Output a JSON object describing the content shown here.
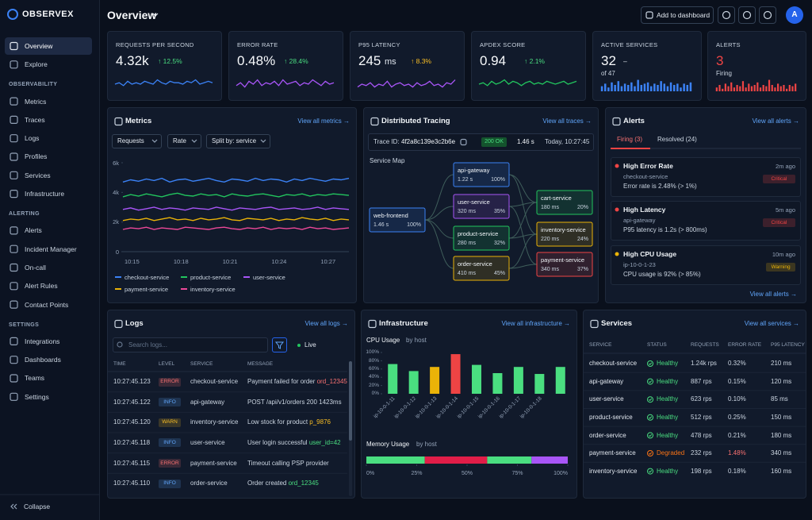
{
  "sidebar": {
    "logo": "OBSERVEX",
    "groups": [
      {
        "items": [
          "Overview",
          "Explore"
        ]
      },
      {
        "title": "OBSERVABILITY",
        "items": [
          "Metrics",
          "Traces",
          "Logs",
          "Profiles",
          "Services",
          "Infrastructure"
        ]
      },
      {
        "title": "ALERTING",
        "items": [
          "Alerts",
          "Incident Manager",
          "On-call",
          "Alert Rules",
          "Contact Points"
        ]
      },
      {
        "title": "SETTINGS",
        "items": [
          "Integrations",
          "Dashboards",
          "Teams",
          "Settings"
        ]
      }
    ],
    "collapse": "Collapse"
  },
  "header": {
    "title": "Overview",
    "add_button": "Add to dashboard",
    "avatar": "A"
  },
  "kpis": [
    {
      "label": "REQUESTS PER SECOND",
      "value": "4.32k",
      "delta": "↑ 12.5%",
      "delta_color": "#4ade80",
      "spark_type": "line",
      "spark_color": "#3b82f6",
      "spark": [
        5,
        6,
        4,
        7,
        5,
        6,
        5,
        7,
        6,
        5,
        8,
        6,
        5,
        7,
        6,
        6,
        5,
        7,
        6,
        8,
        5,
        6,
        7,
        6
      ]
    },
    {
      "label": "ERROR RATE",
      "value": "0.48%",
      "delta": "↑ 28.4%",
      "delta_color": "#4ade80",
      "spark_type": "line",
      "spark_color": "#a855f7",
      "spark": [
        4,
        6,
        3,
        7,
        5,
        8,
        4,
        6,
        5,
        7,
        4,
        8,
        5,
        6,
        7,
        4,
        6,
        5,
        8,
        6,
        4,
        7,
        5,
        6
      ]
    },
    {
      "label": "P95 LATENCY",
      "value": "245",
      "unit": "ms",
      "delta": "↑ 8.3%",
      "delta_color": "#fbbf24",
      "spark_type": "line",
      "spark_color": "#a855f7",
      "spark": [
        3,
        5,
        4,
        6,
        3,
        5,
        4,
        7,
        3,
        5,
        6,
        4,
        5,
        3,
        6,
        4,
        5,
        7,
        4,
        5,
        3,
        6,
        5,
        8
      ]
    },
    {
      "label": "APDEX SCORE",
      "value": "0.94",
      "delta": "↑ 2.1%",
      "delta_color": "#4ade80",
      "spark_type": "line",
      "spark_color": "#22c55e",
      "spark": [
        5,
        6,
        4,
        7,
        5,
        6,
        8,
        5,
        7,
        6,
        4,
        6,
        7,
        5,
        6,
        5,
        7,
        6,
        5,
        6,
        7,
        5,
        6,
        7
      ]
    },
    {
      "label": "ACTIVE SERVICES",
      "value": "32",
      "delta": "–",
      "delta_color": "#e2e8f0",
      "sub": "of 47",
      "spark_type": "bars",
      "spark_color": "#3b82f6",
      "spark": [
        4,
        6,
        3,
        7,
        5,
        8,
        4,
        6,
        5,
        7,
        4,
        9,
        5,
        6,
        7,
        4,
        6,
        5,
        8,
        6,
        4,
        7,
        5,
        6,
        3,
        6,
        5,
        7
      ]
    },
    {
      "label": "ALERTS",
      "value": "3",
      "value_color": "#ef4444",
      "sub": "Firing",
      "spark_type": "bars",
      "spark_color": "#ef4444",
      "spark": [
        3,
        5,
        2,
        6,
        4,
        7,
        3,
        5,
        4,
        8,
        3,
        6,
        4,
        5,
        7,
        3,
        5,
        4,
        9,
        5,
        3,
        6,
        4,
        5,
        2,
        5,
        4,
        6
      ]
    }
  ],
  "metrics": {
    "title": "Metrics",
    "link": "View all metrics →",
    "filters": [
      "Requests",
      "Rate",
      "Split by: service"
    ],
    "chart": {
      "type": "line",
      "ylim": [
        0,
        6000
      ],
      "yticks": [
        0,
        {
          "value": 2000,
          "label": "2k"
        },
        {
          "value": 4000,
          "label": "4k"
        },
        {
          "value": 6000,
          "label": "6k"
        }
      ],
      "xticks": [
        "10:15",
        "10:18",
        "10:21",
        "10:24",
        "10:27"
      ],
      "series": [
        {
          "name": "checkout-service",
          "color": "#3b82f6",
          "values": [
            4700,
            4850,
            4750,
            4900,
            4800,
            4950,
            4700,
            4850,
            4900,
            4750,
            4850,
            4950,
            4800,
            4700,
            4900,
            4850,
            4750,
            4950,
            4800,
            4900,
            4850,
            4700,
            4900,
            4800,
            4950,
            4850,
            4750,
            4900,
            4850,
            4950
          ]
        },
        {
          "name": "product-service",
          "color": "#22c55e",
          "values": [
            3700,
            3850,
            3750,
            3900,
            3800,
            3700,
            3850,
            3950,
            3800,
            3750,
            3900,
            3800,
            3850,
            3700,
            3900,
            3800,
            3750,
            3850,
            3900,
            3800,
            3700,
            3850,
            3800,
            3900,
            3750,
            3850,
            3800,
            3900,
            3850,
            3800
          ]
        },
        {
          "name": "user-service",
          "color": "#a855f7",
          "values": [
            2850,
            2950,
            2800,
            2900,
            3000,
            2850,
            2950,
            2900,
            2800,
            2950,
            2900,
            2850,
            3000,
            2900,
            2800,
            2950,
            2900,
            2850,
            2950,
            3000,
            2850,
            2900,
            2950,
            2850,
            2900,
            3000,
            2850,
            2950,
            2900,
            2850
          ]
        },
        {
          "name": "payment-service",
          "color": "#eab308",
          "values": [
            2100,
            2200,
            2150,
            2250,
            2100,
            2200,
            2300,
            2150,
            2200,
            2100,
            2250,
            2150,
            2200,
            2300,
            2150,
            2100,
            2250,
            2200,
            2150,
            2250,
            2100,
            2200,
            2150,
            2300,
            2200,
            2150,
            2250,
            2100,
            2200,
            2150
          ]
        },
        {
          "name": "inventory-service",
          "color": "#ec4899",
          "values": [
            1500,
            1600,
            1550,
            1650,
            1500,
            1600,
            1550,
            1500,
            1650,
            1600,
            1550,
            1500,
            1600,
            1650,
            1550,
            1500,
            1600,
            1550,
            1650,
            1500,
            1600,
            1550,
            1600,
            1500,
            1650,
            1550,
            1600,
            1500,
            1550,
            1600
          ]
        }
      ]
    }
  },
  "tracing": {
    "title": "Distributed Tracing",
    "link": "View all traces →",
    "trace_id_label": "Trace ID:",
    "trace_id": "4f2a8c139e3c2b6e",
    "status": "200 OK",
    "duration": "1.46 s",
    "time": "Today, 10:27:45",
    "map_title": "Service Map",
    "nodes": [
      {
        "name": "web-frontend",
        "duration": "1.46 s",
        "share": "100%",
        "color": "#3b82f6"
      },
      {
        "name": "api-gateway",
        "duration": "1.22 s",
        "share": "100%",
        "color": "#3b82f6"
      },
      {
        "name": "user-service",
        "duration": "320 ms",
        "share": "35%",
        "color": "#a855f7"
      },
      {
        "name": "product-service",
        "duration": "280 ms",
        "share": "32%",
        "color": "#22c55e"
      },
      {
        "name": "order-service",
        "duration": "410 ms",
        "share": "45%",
        "color": "#eab308"
      },
      {
        "name": "cart-service",
        "duration": "180 ms",
        "share": "20%",
        "color": "#22c55e"
      },
      {
        "name": "inventory-service",
        "duration": "220 ms",
        "share": "24%",
        "color": "#eab308"
      },
      {
        "name": "payment-service",
        "duration": "340 ms",
        "share": "37%",
        "color": "#ef4444"
      }
    ]
  },
  "alerts": {
    "title": "Alerts",
    "link": "View all alerts →",
    "tabs": [
      "Firing (3)",
      "Resolved (24)"
    ],
    "footer_link": "View all alerts →",
    "items": [
      {
        "title": "High Error Rate",
        "source": "checkout-service",
        "detail": "Error rate is 2.48% (> 1%)",
        "age": "2m ago",
        "severity": "Critical",
        "color": "#ef4444"
      },
      {
        "title": "High Latency",
        "source": "api-gateway",
        "detail": "P95 latency is 1.2s (> 800ms)",
        "age": "5m ago",
        "severity": "Critical",
        "color": "#ef4444"
      },
      {
        "title": "High CPU Usage",
        "source": "ip-10-0-1-23",
        "detail": "CPU usage is 92% (> 85%)",
        "age": "10m ago",
        "severity": "Warning",
        "color": "#eab308"
      }
    ]
  },
  "logs": {
    "title": "Logs",
    "link": "View all logs →",
    "search_placeholder": "Search logs...",
    "live": "Live",
    "columns": [
      "TIME",
      "LEVEL",
      "SERVICE",
      "MESSAGE"
    ],
    "rows": [
      {
        "time": "10:27:45.123",
        "level": "ERROR",
        "service": "checkout-service",
        "message": "Payment failed for order ",
        "highlight": "ord_12345"
      },
      {
        "time": "10:27:45.122",
        "level": "INFO",
        "service": "api-gateway",
        "message": "POST /api/v1/orders 200 1423ms"
      },
      {
        "time": "10:27:45.120",
        "level": "WARN",
        "service": "inventory-service",
        "message": "Low stock for product ",
        "highlight": "p_9876"
      },
      {
        "time": "10:27:45.118",
        "level": "INFO",
        "service": "user-service",
        "message": "User login successful ",
        "highlight": "user_id=42"
      },
      {
        "time": "10:27:45.115",
        "level": "ERROR",
        "service": "payment-service",
        "message": "Timeout calling PSP provider"
      },
      {
        "time": "10:27:45.110",
        "level": "INFO",
        "service": "order-service",
        "message": "Order created ",
        "highlight": "ord_12345"
      }
    ]
  },
  "infrastructure": {
    "title": "Infrastructure",
    "link": "View all infrastructure →",
    "cpu": {
      "title": "CPU Usage",
      "subtitle": "by host",
      "type": "bar",
      "ylim": [
        0,
        100
      ],
      "yticks": [
        {
          "value": 0,
          "label": "0%"
        },
        {
          "value": 20,
          "label": "20%"
        },
        {
          "value": 40,
          "label": "40%"
        },
        {
          "value": 60,
          "label": "60%"
        },
        {
          "value": 80,
          "label": "80%"
        },
        {
          "value": 100,
          "label": "100%"
        }
      ],
      "categories": [
        "ip-10-0-1-11",
        "ip-10-0-1-12",
        "ip-10-0-1-13",
        "ip-10-0-1-14",
        "ip-10-0-1-15",
        "ip-10-0-1-16",
        "ip-10-0-1-17",
        "ip-10-0-1-18",
        null
      ],
      "values": [
        72,
        55,
        65,
        96,
        70,
        50,
        65,
        48,
        65
      ],
      "colors": [
        "#4ade80",
        "#4ade80",
        "#eab308",
        "#ef4444",
        "#4ade80",
        "#4ade80",
        "#4ade80",
        "#4ade80",
        "#4ade80"
      ]
    },
    "memory": {
      "title": "Memory Usage",
      "subtitle": "by host",
      "type": "stacked_bar",
      "xlim": [
        0,
        100
      ],
      "xticks": [
        {
          "value": 0,
          "label": "0%"
        },
        {
          "value": 25,
          "label": "25%"
        },
        {
          "value": 50,
          "label": "50%"
        },
        {
          "value": 75,
          "label": "75%"
        },
        {
          "value": 100,
          "label": "100%"
        }
      ],
      "values": [
        29,
        31,
        22,
        18
      ],
      "colors": [
        "#4ade80",
        "#e11d48",
        "#4ade80",
        "#a855f7"
      ]
    }
  },
  "services": {
    "title": "Services",
    "link": "View all services →",
    "columns": [
      "SERVICE",
      "STATUS",
      "REQUESTS",
      "ERROR RATE",
      "P95 LATENCY"
    ],
    "rows": [
      {
        "cells": [
          "checkout-service",
          "Healthy",
          "1.24k rps",
          "0.32%",
          "210 ms"
        ],
        "color": "#4ade80"
      },
      {
        "cells": [
          "api-gateway",
          "Healthy",
          "887 rps",
          "0.15%",
          "120 ms"
        ],
        "color": "#4ade80"
      },
      {
        "cells": [
          "user-service",
          "Healthy",
          "623 rps",
          "0.10%",
          "85 ms"
        ],
        "color": "#4ade80"
      },
      {
        "cells": [
          "product-service",
          "Healthy",
          "512 rps",
          "0.25%",
          "150 ms"
        ],
        "color": "#4ade80"
      },
      {
        "cells": [
          "order-service",
          "Healthy",
          "478 rps",
          "0.21%",
          "180 ms"
        ],
        "color": "#4ade80"
      },
      {
        "cells": [
          "payment-service",
          "Degraded",
          "232 rps",
          "1.48%",
          "340 ms"
        ],
        "color": "#f97316"
      },
      {
        "cells": [
          "inventory-service",
          "Healthy",
          "198 rps",
          "0.18%",
          "160 ms"
        ],
        "color": "#4ade80"
      }
    ]
  }
}
